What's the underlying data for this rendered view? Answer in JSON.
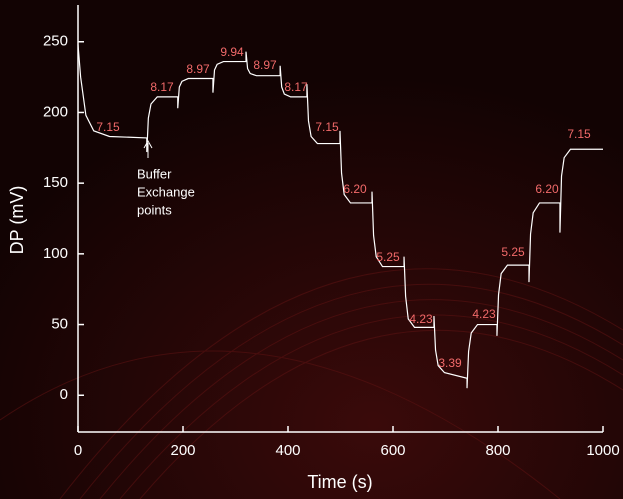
{
  "chart_data": {
    "type": "line",
    "x_label": "Time (s)",
    "y_label": "DP (mV)",
    "xlim": [
      0,
      1000
    ],
    "ylim": [
      -26,
      276
    ],
    "xticks": [
      0,
      200,
      400,
      600,
      800,
      1000
    ],
    "yticks": [
      0,
      50,
      100,
      150,
      200,
      250
    ],
    "series": [
      {
        "color": "#ffffff",
        "x": [
          0,
          5,
          15,
          30,
          60,
          131,
          131,
          134,
          139,
          151,
          190,
          190,
          193,
          198,
          210,
          257,
          257,
          260,
          265,
          277,
          320,
          320,
          323,
          328,
          340,
          385,
          385,
          388,
          393,
          405,
          436,
          436,
          439,
          444,
          456,
          499,
          499,
          502,
          507,
          519,
          560,
          560,
          563,
          568,
          580,
          621,
          621,
          624,
          629,
          641,
          678,
          678,
          681,
          686,
          698,
          741,
          741,
          744,
          749,
          761,
          798,
          798,
          801,
          806,
          818,
          859,
          859,
          862,
          867,
          879,
          918,
          918,
          921,
          926,
          938,
          1000
        ],
        "values": [
          248,
          225,
          198,
          187,
          183,
          182,
          172,
          196,
          206,
          211,
          211,
          203,
          218,
          222,
          224,
          224,
          214,
          230,
          234,
          236,
          236,
          243,
          231,
          227.5,
          226,
          226,
          233,
          218,
          213,
          211,
          211,
          220,
          194,
          183,
          178,
          178,
          187,
          157,
          142,
          136,
          136,
          144,
          113,
          98,
          91,
          91,
          98,
          70,
          54,
          48,
          48,
          56,
          32,
          21,
          16,
          12,
          5,
          31,
          44,
          50,
          50,
          42,
          71,
          86,
          92,
          92,
          80,
          114,
          129,
          136,
          136,
          115,
          155,
          168,
          174,
          174
        ]
      }
    ],
    "annotations": [
      "7.15",
      "8.17",
      "8.97",
      "9.94",
      "8.97",
      "8.17",
      "7.15",
      "6.20",
      "5.25",
      "4.23",
      "3.39",
      "4.23",
      "5.25",
      "6.20",
      "7.15"
    ],
    "note_lines": [
      "Buffer",
      "Exchange",
      "points"
    ]
  }
}
